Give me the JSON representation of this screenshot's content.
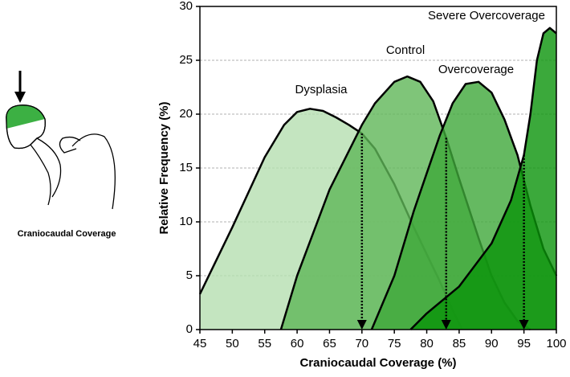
{
  "illustration": {
    "caption": "Craniocaudal Coverage"
  },
  "chart_data": {
    "type": "area",
    "x_label": "Craniocaudal Coverage (%)",
    "y_label": "Relative Frequency (%)",
    "xlim": [
      45,
      100
    ],
    "xticks": [
      45,
      50,
      55,
      60,
      65,
      70,
      75,
      80,
      85,
      90,
      95,
      100
    ],
    "ylim": [
      0,
      30
    ],
    "yticks": [
      0,
      5,
      10,
      15,
      20,
      25,
      30
    ],
    "grid": true,
    "series": [
      {
        "name": "Dysplasia",
        "color": "#b5dfb0",
        "x": [
          45,
          50,
          55,
          58,
          60,
          62,
          64,
          66,
          68,
          70,
          72,
          75,
          78,
          80,
          82,
          84,
          85.5
        ],
        "values": [
          3.3,
          9.5,
          16,
          19,
          20.2,
          20.5,
          20.3,
          19.7,
          19,
          18.2,
          16.8,
          13.5,
          9.5,
          7,
          4.5,
          1.8,
          0
        ]
      },
      {
        "name": "Control",
        "color": "#5fb657",
        "x": [
          57.5,
          60,
          65,
          70,
          72,
          75,
          77,
          79,
          81,
          83,
          85,
          88,
          90,
          92,
          94,
          96
        ],
        "values": [
          0,
          5,
          13,
          19,
          21,
          23,
          23.5,
          23,
          21.2,
          17.8,
          14,
          8.5,
          5,
          2.5,
          0.8,
          0
        ]
      },
      {
        "name": "Overcoverage",
        "color": "#3fa83a",
        "x": [
          71.5,
          75,
          78,
          80,
          82,
          84,
          86,
          88,
          90,
          92,
          94,
          96,
          98,
          100
        ],
        "values": [
          0,
          5,
          11,
          14.5,
          18,
          21,
          22.8,
          23,
          22,
          19.5,
          16.2,
          11.5,
          7.5,
          5
        ]
      },
      {
        "name": "Severe Overcoverage",
        "color": "#0a940a",
        "x": [
          77.5,
          80,
          85,
          90,
          93,
          95,
          96,
          97,
          98,
          99,
          100
        ],
        "values": [
          0,
          1.5,
          4,
          8,
          12,
          16.2,
          20,
          25,
          27.5,
          28,
          27.5
        ]
      }
    ],
    "markers": [
      {
        "x": 70,
        "y": 18.2
      },
      {
        "x": 83,
        "y": 17.8
      },
      {
        "x": 95,
        "y": 16.2
      }
    ]
  }
}
